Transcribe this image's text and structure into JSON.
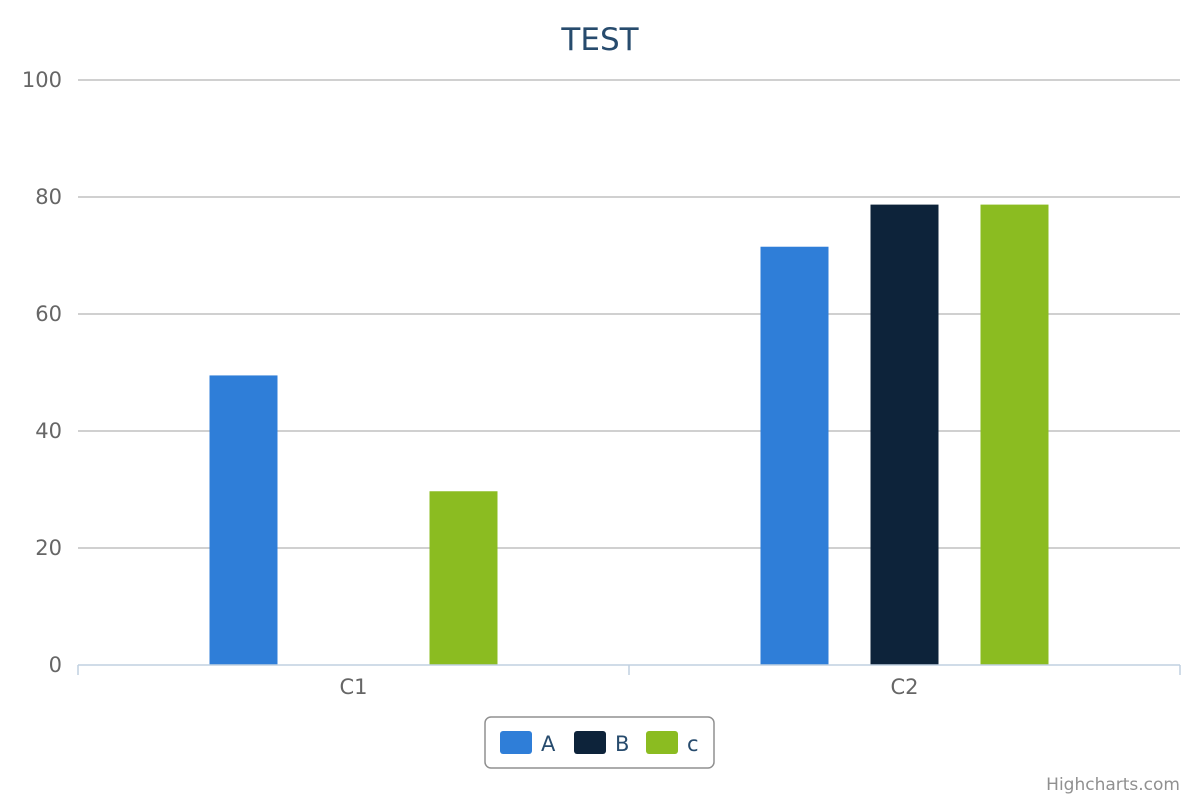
{
  "chart_data": {
    "type": "bar",
    "title": "TEST",
    "xlabel": "",
    "ylabel": "",
    "categories": [
      "C1",
      "C2"
    ],
    "series": [
      {
        "name": "A",
        "color": "#2f7ed8",
        "values": [
          49.5,
          71.5
        ]
      },
      {
        "name": "B",
        "color": "#0d233a",
        "values": [
          0,
          78.7
        ]
      },
      {
        "name": "c",
        "color": "#8bbc21",
        "values": [
          29.7,
          78.7
        ]
      }
    ],
    "ylim": [
      0,
      100
    ],
    "yticks": [
      "0",
      "20",
      "40",
      "60",
      "80",
      "100"
    ],
    "grid": true,
    "legend_position": "bottom-center"
  },
  "credits": "Highcharts.com"
}
